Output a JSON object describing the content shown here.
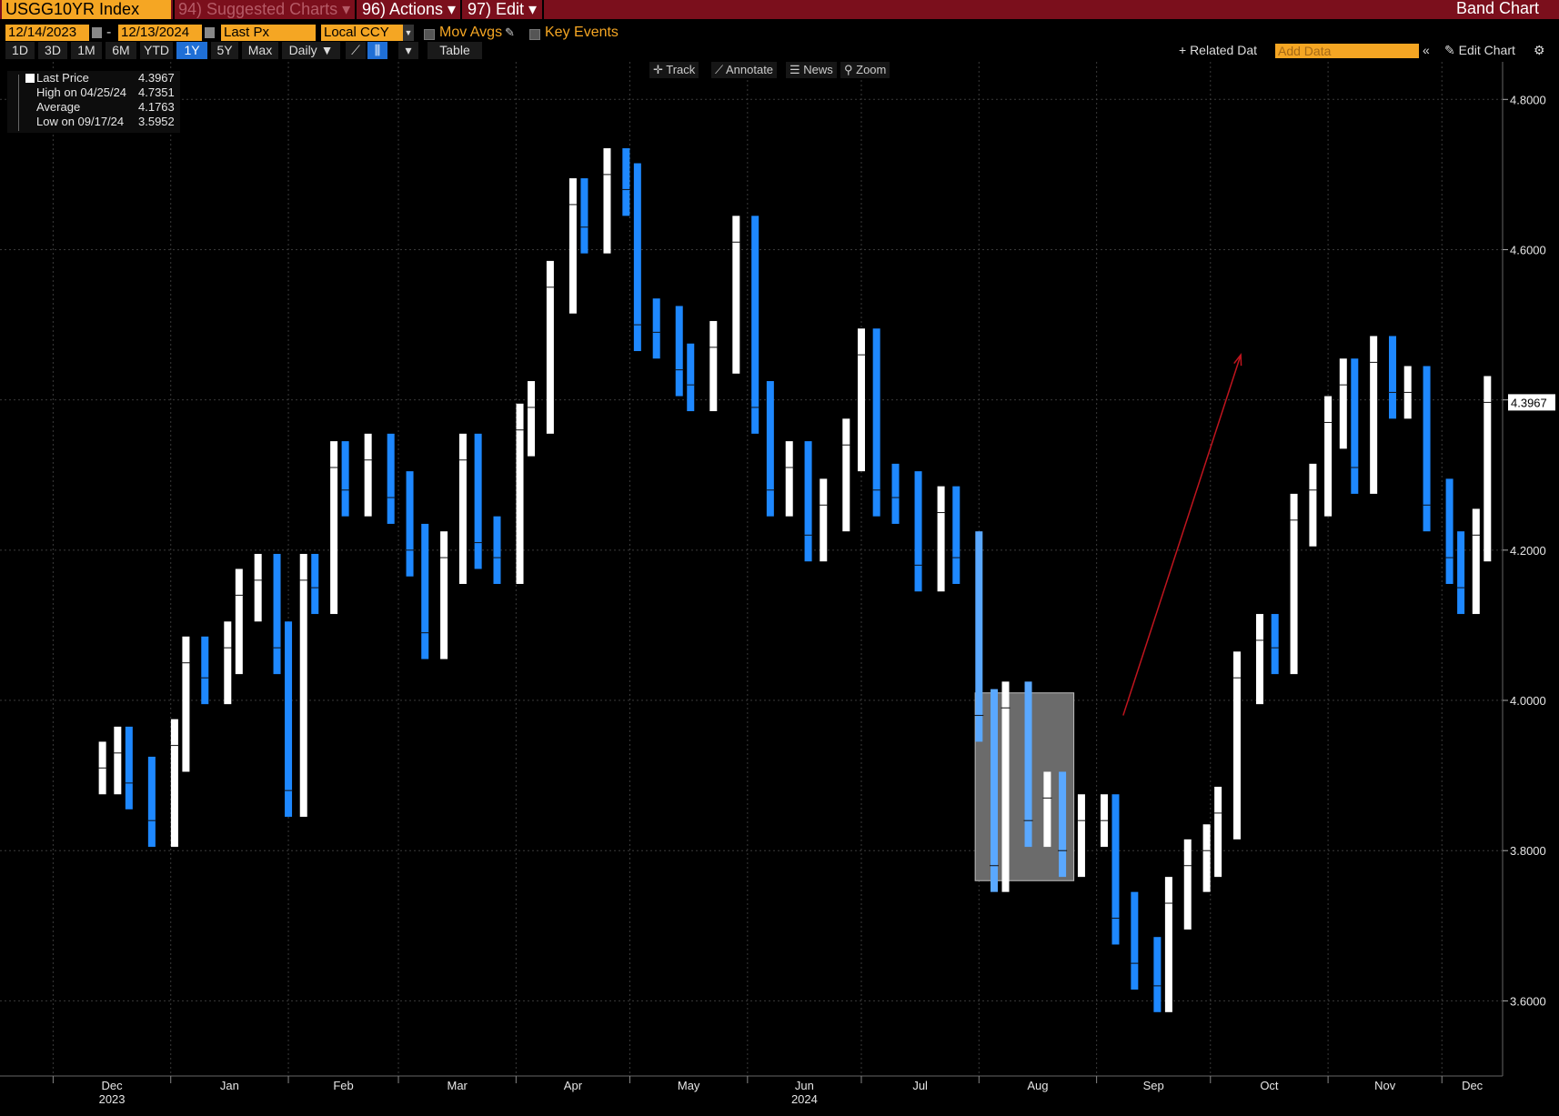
{
  "window": {
    "ticker": "USGG10YR Index",
    "menu": [
      {
        "label": "94) Suggested Charts ▾",
        "dim": true
      },
      {
        "label": "96) Actions ▾",
        "dim": false
      },
      {
        "label": "97) Edit ▾",
        "dim": false
      }
    ],
    "title": "Band Chart"
  },
  "options": {
    "start_date": "12/14/2023",
    "date_sep": "-",
    "end_date": "12/13/2024",
    "field": "Last Px",
    "currency": "Local CCY",
    "mov_avgs": "Mov Avgs",
    "key_events": "Key Events"
  },
  "periods": {
    "buttons": [
      "1D",
      "3D",
      "1M",
      "6M",
      "YTD",
      "1Y",
      "5Y",
      "Max"
    ],
    "active": "1Y",
    "frequency": "Daily ▼",
    "table": "Table",
    "related": "+ Related Dat",
    "add_data_placeholder": "Add Data",
    "edit_chart": "✎ Edit Chart"
  },
  "toolbar": {
    "track": "✛ Track",
    "annotate": "⟋ Annotate",
    "news": "☰ News",
    "zoom": "⚲ Zoom"
  },
  "legend": {
    "last_price_label": "Last Price",
    "last_price_value": "4.3967",
    "high_label": "High on 04/25/24",
    "high_value": "4.7351",
    "average_label": "Average",
    "average_value": "4.1763",
    "low_label": "Low on 09/17/24",
    "low_value": "3.5952"
  },
  "colors": {
    "up": "#ffffff",
    "down": "#1e88ff",
    "down_light": "#5aa8ff",
    "background": "#000000",
    "grid": "#3a3a3a",
    "accent": "#f5a623",
    "header": "#7b0f1c",
    "annotation_arrow": "#c0151e",
    "highlight_box": "#6b6b6b"
  },
  "chart_data": {
    "type": "bar",
    "subtype": "band (OHLC-style)",
    "title": "",
    "xlabel": "",
    "ylabel": "",
    "last_value_label": "4.3967",
    "ylim": [
      3.5,
      4.85
    ],
    "yticks": [
      "3.6000",
      "3.8000",
      "4.0000",
      "4.2000",
      "4.4000",
      "4.6000",
      "4.8000"
    ],
    "grid": true,
    "x_start": "2023-12-14",
    "x_end": "2024-12-13",
    "xticks": [
      {
        "label": "Dec",
        "date": "2023-12-01",
        "year": "2023"
      },
      {
        "label": "Jan",
        "date": "2024-01-01"
      },
      {
        "label": "Feb",
        "date": "2024-02-01"
      },
      {
        "label": "Mar",
        "date": "2024-03-01"
      },
      {
        "label": "Apr",
        "date": "2024-04-01"
      },
      {
        "label": "May",
        "date": "2024-05-01"
      },
      {
        "label": "Jun",
        "date": "2024-06-01",
        "year": "2024"
      },
      {
        "label": "Jul",
        "date": "2024-07-01"
      },
      {
        "label": "Aug",
        "date": "2024-08-01"
      },
      {
        "label": "Sep",
        "date": "2024-09-01"
      },
      {
        "label": "Oct",
        "date": "2024-10-01"
      },
      {
        "label": "Nov",
        "date": "2024-11-01"
      },
      {
        "label": "Dec",
        "date": "2024-12-01"
      }
    ],
    "close_series": {
      "name": "Last Price",
      "dates": [
        "2023-12-14",
        "2023-12-18",
        "2023-12-21",
        "2023-12-27",
        "2024-01-02",
        "2024-01-05",
        "2024-01-10",
        "2024-01-16",
        "2024-01-19",
        "2024-01-24",
        "2024-01-29",
        "2024-02-01",
        "2024-02-05",
        "2024-02-08",
        "2024-02-13",
        "2024-02-16",
        "2024-02-22",
        "2024-02-28",
        "2024-03-04",
        "2024-03-08",
        "2024-03-13",
        "2024-03-18",
        "2024-03-22",
        "2024-03-27",
        "2024-04-02",
        "2024-04-05",
        "2024-04-10",
        "2024-04-16",
        "2024-04-19",
        "2024-04-25",
        "2024-04-30",
        "2024-05-03",
        "2024-05-08",
        "2024-05-14",
        "2024-05-17",
        "2024-05-23",
        "2024-05-29",
        "2024-06-03",
        "2024-06-07",
        "2024-06-12",
        "2024-06-17",
        "2024-06-21",
        "2024-06-27",
        "2024-07-01",
        "2024-07-05",
        "2024-07-10",
        "2024-07-16",
        "2024-07-22",
        "2024-07-26",
        "2024-08-01",
        "2024-08-05",
        "2024-08-08",
        "2024-08-14",
        "2024-08-19",
        "2024-08-23",
        "2024-08-28",
        "2024-09-03",
        "2024-09-06",
        "2024-09-11",
        "2024-09-17",
        "2024-09-20",
        "2024-09-25",
        "2024-09-30",
        "2024-10-03",
        "2024-10-08",
        "2024-10-14",
        "2024-10-18",
        "2024-10-23",
        "2024-10-28",
        "2024-11-01",
        "2024-11-05",
        "2024-11-08",
        "2024-11-13",
        "2024-11-18",
        "2024-11-22",
        "2024-11-27",
        "2024-12-03",
        "2024-12-06",
        "2024-12-10",
        "2024-12-13"
      ],
      "values": [
        3.91,
        3.93,
        3.89,
        3.84,
        3.94,
        4.05,
        4.03,
        4.07,
        4.14,
        4.16,
        4.07,
        3.88,
        4.16,
        4.15,
        4.31,
        4.28,
        4.32,
        4.27,
        4.2,
        4.09,
        4.19,
        4.32,
        4.21,
        4.19,
        4.36,
        4.39,
        4.55,
        4.66,
        4.63,
        4.7,
        4.68,
        4.5,
        4.49,
        4.44,
        4.42,
        4.47,
        4.61,
        4.39,
        4.28,
        4.31,
        4.22,
        4.26,
        4.34,
        4.46,
        4.28,
        4.27,
        4.18,
        4.25,
        4.19,
        3.98,
        3.78,
        3.99,
        3.84,
        3.87,
        3.8,
        3.84,
        3.84,
        3.71,
        3.65,
        3.62,
        3.73,
        3.78,
        3.8,
        3.85,
        4.03,
        4.08,
        4.07,
        4.24,
        4.28,
        4.37,
        4.42,
        4.31,
        4.45,
        4.41,
        4.41,
        4.26,
        4.19,
        4.15,
        4.22,
        4.3967
      ]
    },
    "high": {
      "date": "2024-04-25",
      "value": 4.7351
    },
    "average": 4.1763,
    "low": {
      "date": "2024-09-17",
      "value": 3.5952
    },
    "highlight_region": {
      "from": "2024-07-31",
      "to": "2024-08-26",
      "ymin": 3.76,
      "ymax": 4.01
    },
    "arrow": {
      "from_date": "2024-09-08",
      "from_value": 3.98,
      "to_date": "2024-10-09",
      "to_value": 4.46
    }
  }
}
